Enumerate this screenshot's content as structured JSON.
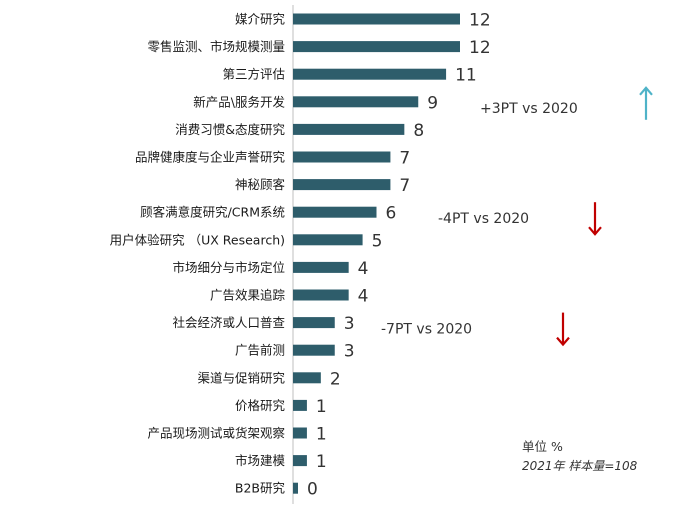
{
  "chart_data": {
    "type": "bar",
    "orientation": "horizontal",
    "categories": [
      "媒介研究",
      "零售监测、市场规模测量",
      "第三方评估",
      "新产品\\服务开发",
      "消费习惯&态度研究",
      "品牌健康度与企业声誉研究",
      "神秘顾客",
      "顾客满意度研究/CRM系统",
      "用户体验研究 （UX Research)",
      "市场细分与市场定位",
      "广告效果追踪",
      "社会经济或人口普查",
      "广告前测",
      "渠道与促销研究",
      "价格研究",
      "产品现场测试或货架观察",
      "市场建模",
      "B2B研究"
    ],
    "values": [
      12,
      12,
      11,
      9,
      8,
      7,
      7,
      6,
      5,
      4,
      4,
      3,
      3,
      2,
      1,
      1,
      1,
      0
    ],
    "bar_color": "#2e5d6b",
    "xlim": [
      0,
      12
    ],
    "annotations": [
      {
        "category_index": 3,
        "text": "+3PT vs 2020",
        "arrow": "up",
        "arrow_color": "#4fb3c8"
      },
      {
        "category_index": 7,
        "text": "-4PT vs 2020",
        "arrow": "down",
        "arrow_color": "#c00000"
      },
      {
        "category_index": 11,
        "text": "-7PT vs 2020",
        "arrow": "down",
        "arrow_color": "#c00000"
      }
    ],
    "footnote": {
      "unit": "单位 %",
      "sample": "2021年 样本量=108"
    }
  }
}
